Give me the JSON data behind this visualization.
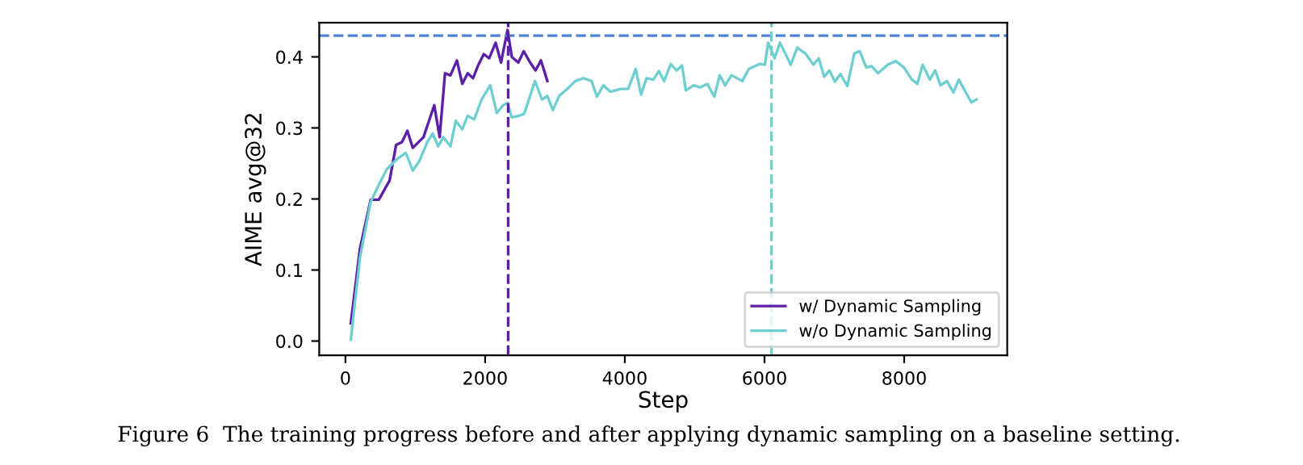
{
  "chart_data": {
    "type": "line",
    "xlabel": "Step",
    "ylabel": "AIME avg@32",
    "xlim": [
      -375,
      9475
    ],
    "ylim": [
      -0.02,
      0.448
    ],
    "xticks": [
      0,
      2000,
      4000,
      6000,
      8000
    ],
    "yticks": [
      {
        "value": 0.0,
        "label": "0.0"
      },
      0.1,
      0.2,
      0.3,
      0.4
    ],
    "grid": false,
    "legend": "bottom right",
    "line_style": "solid",
    "marker": "none",
    "series": [
      {
        "name": "w/ Dynamic Sampling",
        "color": "#5b1fa8",
        "x": [
          77,
          208,
          362,
          478,
          632,
          725,
          810,
          887,
          964,
          1118,
          1272,
          1349,
          1426,
          1503,
          1596,
          1673,
          1750,
          1827,
          1904,
          1981,
          2058,
          2151,
          2228,
          2321,
          2382,
          2475,
          2552,
          2645,
          2722,
          2799,
          2891
        ],
        "values": [
          0.025,
          0.13,
          0.199,
          0.199,
          0.226,
          0.276,
          0.28,
          0.296,
          0.272,
          0.287,
          0.332,
          0.287,
          0.377,
          0.374,
          0.395,
          0.362,
          0.377,
          0.37,
          0.389,
          0.404,
          0.398,
          0.42,
          0.392,
          0.438,
          0.4,
          0.392,
          0.408,
          0.392,
          0.381,
          0.395,
          0.366
        ]
      },
      {
        "name": "w/o Dynamic Sampling",
        "color": "#6fcfd0",
        "x": [
          77,
          208,
          362,
          478,
          594,
          748,
          864,
          964,
          1056,
          1172,
          1249,
          1326,
          1403,
          1503,
          1580,
          1673,
          1750,
          1843,
          1950,
          2074,
          2167,
          2259,
          2321,
          2382,
          2483,
          2560,
          2714,
          2814,
          2891,
          2969,
          3061,
          3177,
          3292,
          3408,
          3524,
          3601,
          3693,
          3793,
          3947,
          4048,
          4156,
          4233,
          4310,
          4410,
          4487,
          4564,
          4657,
          4742,
          4819,
          4873,
          4988,
          5081,
          5181,
          5281,
          5359,
          5436,
          5528,
          5682,
          5775,
          5929,
          6006,
          6052,
          6144,
          6222,
          6376,
          6469,
          6592,
          6700,
          6777,
          6854,
          6931,
          7008,
          7086,
          7186,
          7286,
          7363,
          7456,
          7533,
          7625,
          7764,
          7880,
          7995,
          8111,
          8188,
          8265,
          8366,
          8443,
          8520,
          8612,
          8705,
          8782,
          8882,
          8960,
          9037
        ],
        "values": [
          0.002,
          0.117,
          0.196,
          0.22,
          0.242,
          0.257,
          0.265,
          0.24,
          0.253,
          0.28,
          0.292,
          0.274,
          0.287,
          0.274,
          0.31,
          0.298,
          0.317,
          0.312,
          0.34,
          0.36,
          0.321,
          0.332,
          0.335,
          0.315,
          0.317,
          0.32,
          0.366,
          0.34,
          0.345,
          0.325,
          0.345,
          0.355,
          0.366,
          0.37,
          0.366,
          0.344,
          0.36,
          0.351,
          0.355,
          0.355,
          0.383,
          0.347,
          0.37,
          0.368,
          0.38,
          0.366,
          0.39,
          0.381,
          0.388,
          0.353,
          0.36,
          0.357,
          0.362,
          0.344,
          0.374,
          0.36,
          0.374,
          0.366,
          0.383,
          0.39,
          0.389,
          0.42,
          0.398,
          0.42,
          0.389,
          0.413,
          0.404,
          0.389,
          0.398,
          0.372,
          0.381,
          0.365,
          0.376,
          0.359,
          0.405,
          0.408,
          0.385,
          0.387,
          0.377,
          0.389,
          0.394,
          0.385,
          0.368,
          0.362,
          0.389,
          0.368,
          0.381,
          0.36,
          0.366,
          0.35,
          0.368,
          0.35,
          0.336,
          0.34
        ]
      }
    ],
    "ref_lines": [
      {
        "axis": "y",
        "value": 0.43,
        "color": "#4f81d4",
        "line_style": "dashed"
      },
      {
        "axis": "x",
        "value": 2330,
        "color": "#5b1fa8",
        "line_style": "dashed"
      },
      {
        "axis": "x",
        "value": 6100,
        "color": "#6fcfd0",
        "line_style": "dashed"
      }
    ],
    "annotations": [
      "Figure 6  The training progress before and after applying dynamic sampling on a baseline setting."
    ]
  }
}
